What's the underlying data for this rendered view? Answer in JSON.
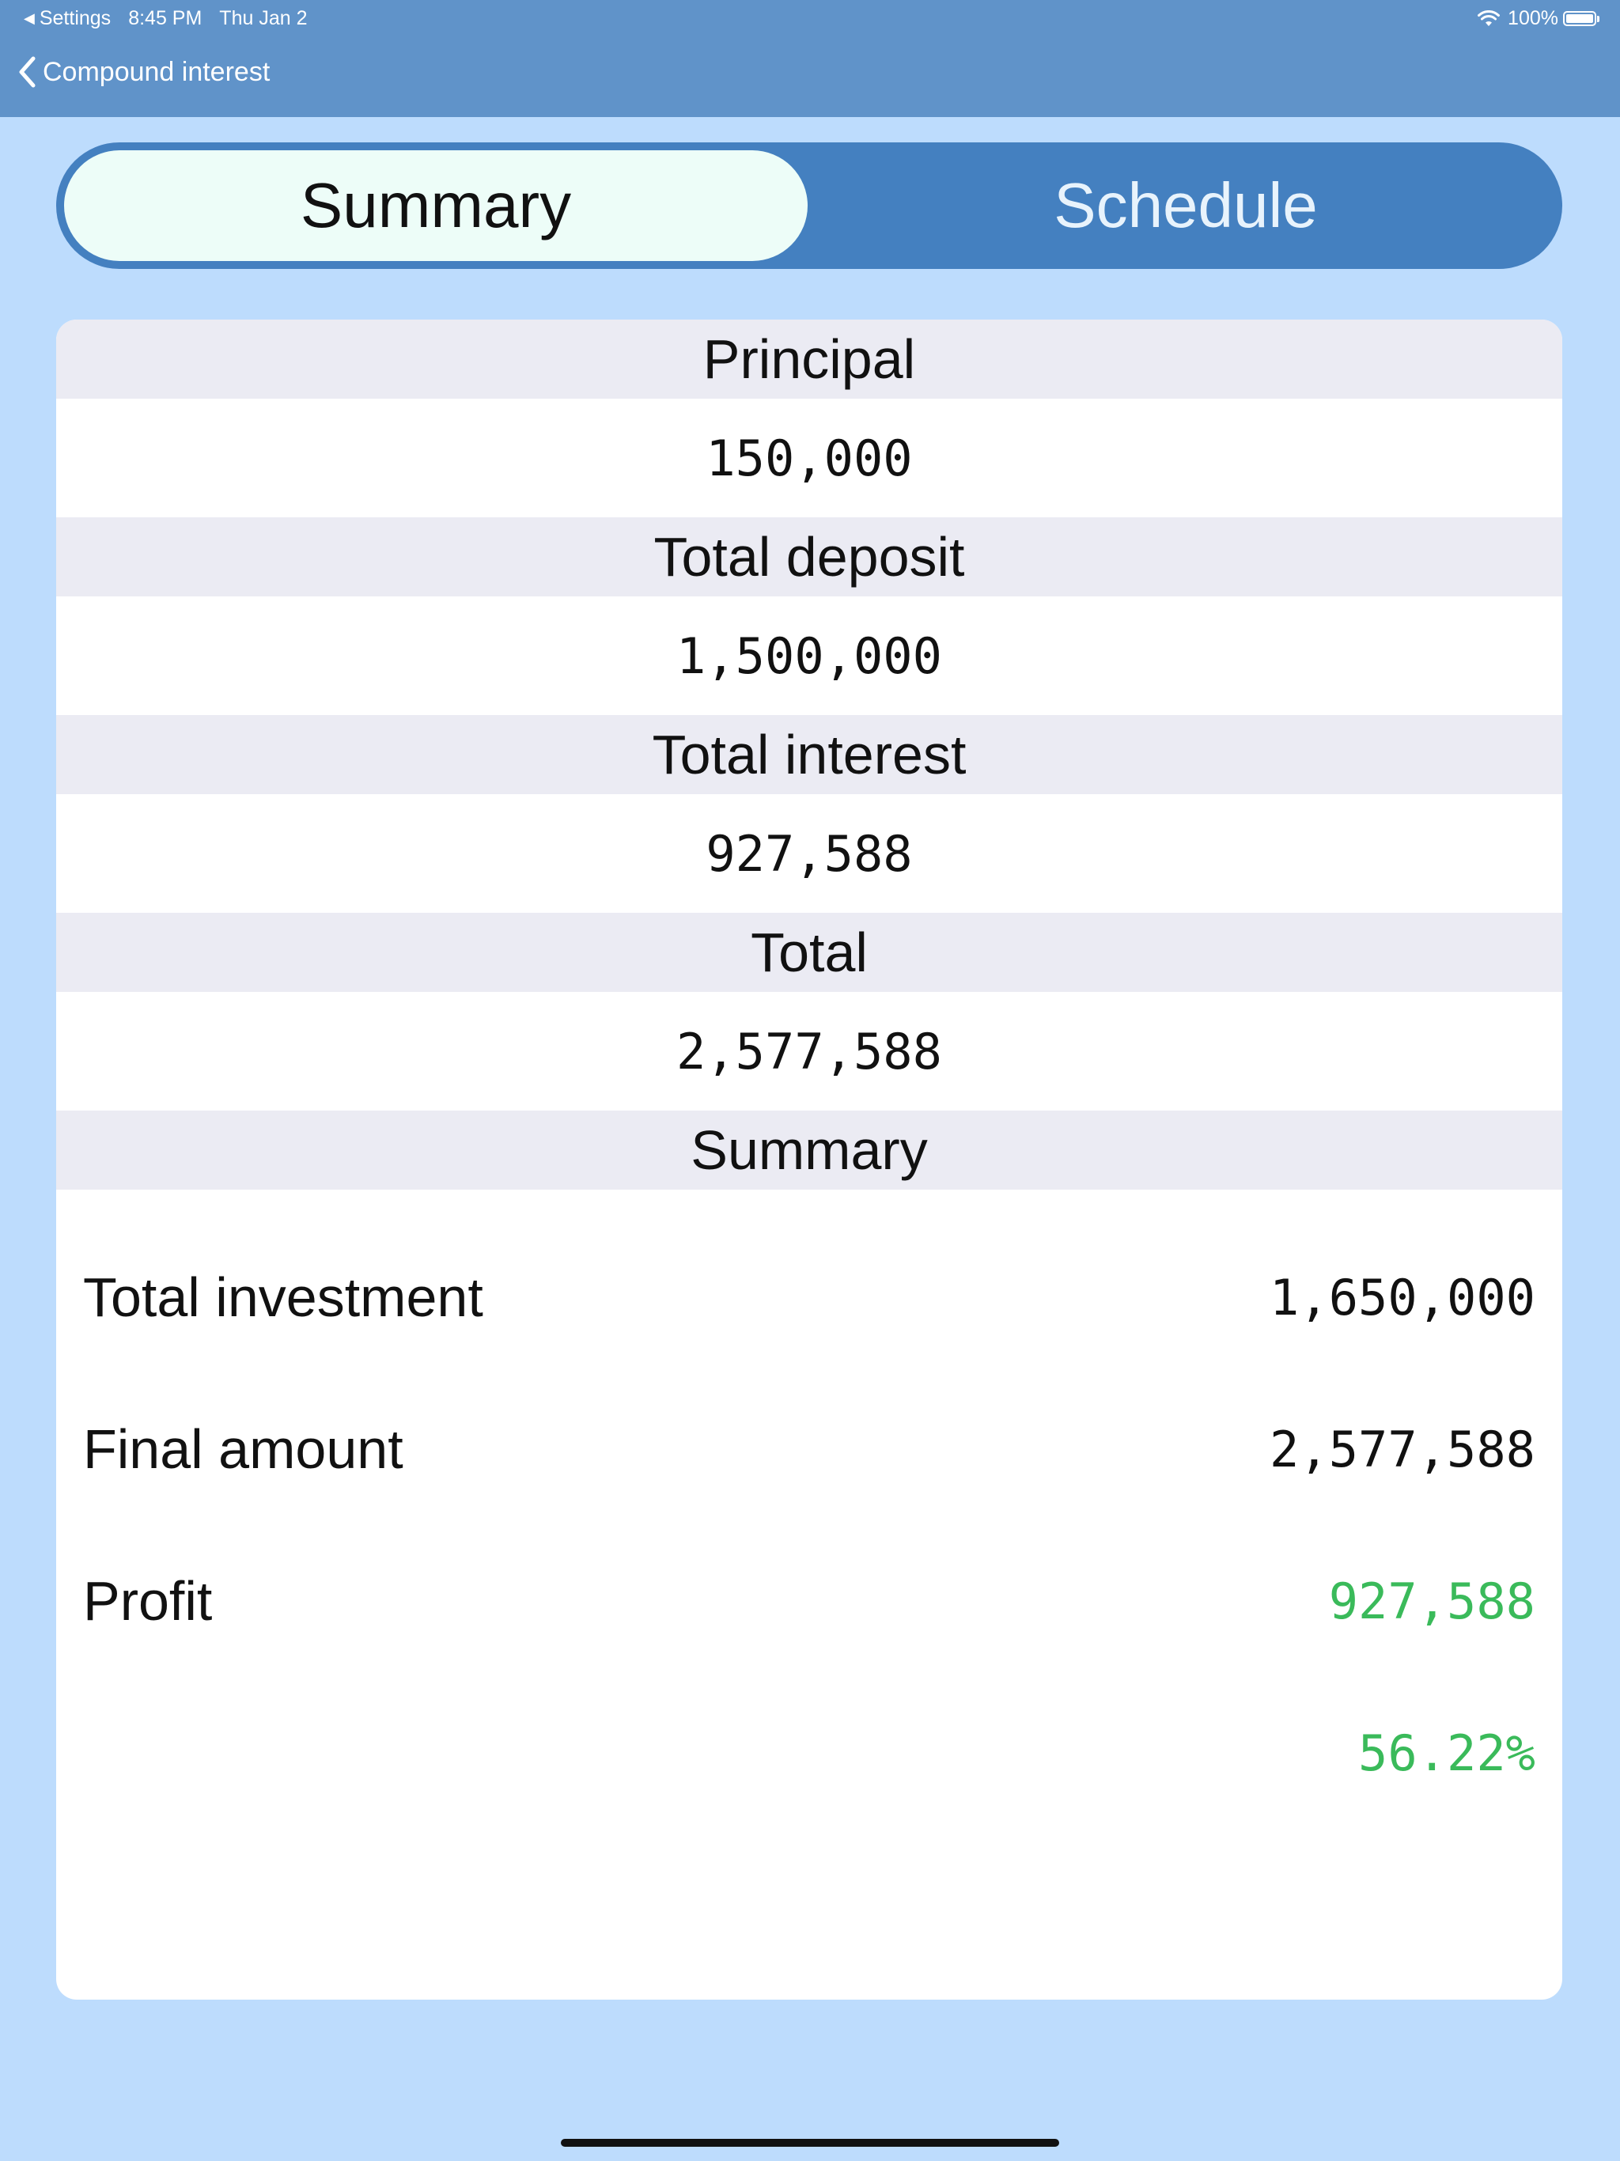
{
  "status": {
    "back_app": "Settings",
    "time": "8:45 PM",
    "date": "Thu Jan 2",
    "battery": "100%"
  },
  "nav": {
    "back_label": "Compound interest"
  },
  "tabs": {
    "summary": "Summary",
    "schedule": "Schedule",
    "active": "Summary"
  },
  "sections": [
    {
      "header": "Principal",
      "value": "150,000"
    },
    {
      "header": "Total deposit",
      "value": "1,500,000"
    },
    {
      "header": "Total interest",
      "value": "927,588"
    },
    {
      "header": "Total",
      "value": "2,577,588"
    }
  ],
  "summary": {
    "header": "Summary",
    "rows": [
      {
        "label": "Total investment",
        "value": "1,650,000"
      },
      {
        "label": "Final amount",
        "value": "2,577,588"
      },
      {
        "label": "Profit",
        "value": "927,588"
      },
      {
        "label": "",
        "value": "56.22%"
      }
    ]
  },
  "colors": {
    "profit": "#3aba5a",
    "nav_bar": "#6093c9",
    "background": "#bddcfd",
    "segment": "#4480c0"
  }
}
